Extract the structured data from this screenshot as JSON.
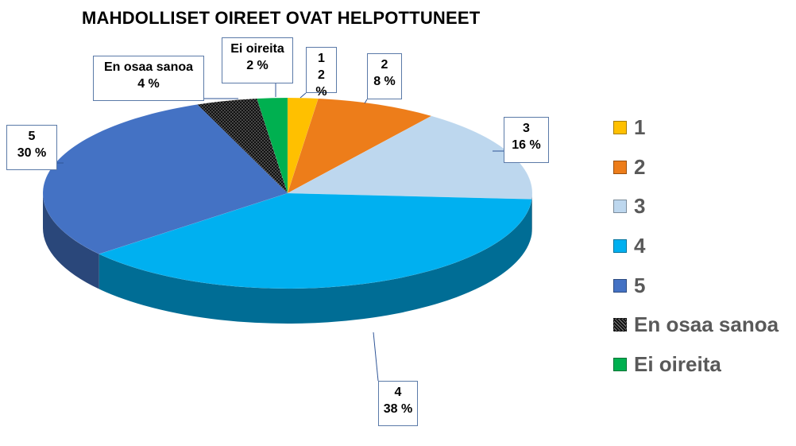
{
  "title": "MAHDOLLISET OIREET OVAT HELPOTTUNEET",
  "chart_data": {
    "type": "pie",
    "title": "MAHDOLLISET OIREET OVAT HELPOTTUNEET",
    "legend_position": "right",
    "slices": [
      {
        "label": "1",
        "value": 2,
        "value_label": "2 %",
        "color": "#FFC000"
      },
      {
        "label": "2",
        "value": 8,
        "value_label": "8 %",
        "color": "#ED7D1A"
      },
      {
        "label": "3",
        "value": 16,
        "value_label": "16 %",
        "color": "#BDD7EE"
      },
      {
        "label": "4",
        "value": 38,
        "value_label": "38 %",
        "color": "#00B0F0"
      },
      {
        "label": "5",
        "value": 30,
        "value_label": "30 %",
        "color": "#4472C4"
      },
      {
        "label": "En osaa sanoa",
        "value": 4,
        "value_label": "4 %",
        "color": "#111111"
      },
      {
        "label": "Ei oireita",
        "value": 2,
        "value_label": "2 %",
        "color": "#00B050"
      }
    ]
  }
}
